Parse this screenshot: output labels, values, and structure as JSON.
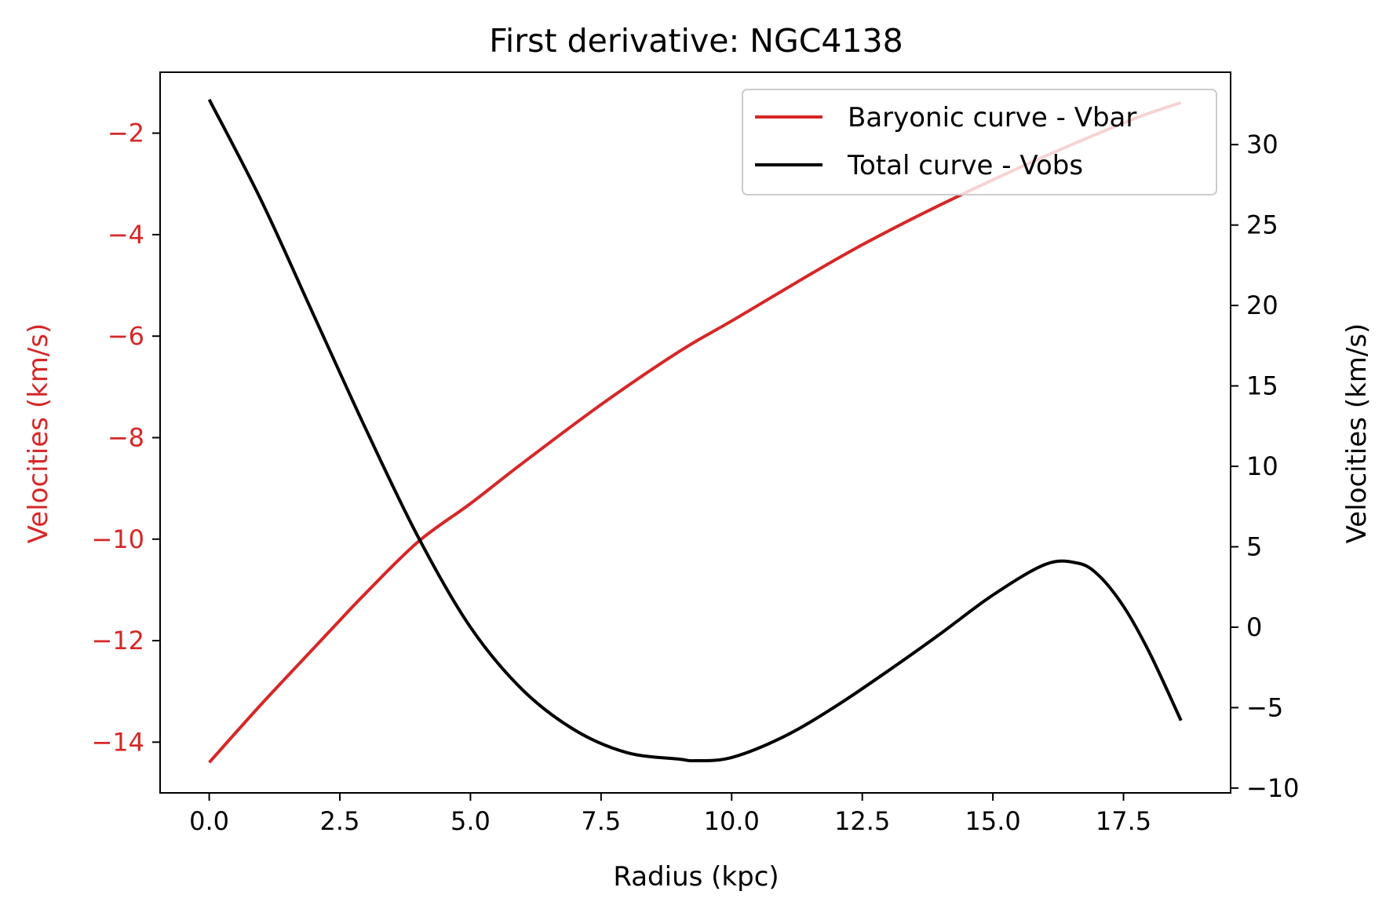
{
  "chart_data": {
    "type": "line",
    "title": "First derivative: NGC4138",
    "xlabel": "Radius (kpc)",
    "ylabel_left": "Velocities (km/s)",
    "ylabel_right": "Velocities (km/s)",
    "xlim": [
      -0.94,
      19.55
    ],
    "ylim_left": [
      -15.0,
      -0.8
    ],
    "ylim_right": [
      -10.3,
      34.5
    ],
    "x_ticks": [
      "0.0",
      "2.5",
      "5.0",
      "7.5",
      "10.0",
      "12.5",
      "15.0",
      "17.5"
    ],
    "x_tick_values": [
      0,
      2.5,
      5,
      7.5,
      10,
      12.5,
      15,
      17.5
    ],
    "y_left_ticks": [
      "−14",
      "−12",
      "−10",
      "−8",
      "−6",
      "−4",
      "−2"
    ],
    "y_left_tick_values": [
      -14,
      -12,
      -10,
      -8,
      -6,
      -4,
      -2
    ],
    "y_right_ticks": [
      "−10",
      "−5",
      "0",
      "5",
      "10",
      "15",
      "20",
      "25",
      "30"
    ],
    "y_right_tick_values": [
      -10,
      -5,
      0,
      5,
      10,
      15,
      20,
      25,
      30
    ],
    "grid": false,
    "legend_position": "top-right",
    "colors": {
      "left_axis": "#d62728",
      "vbar": "#d62728",
      "vobs": "#000000"
    },
    "series": [
      {
        "name": "Baryonic curve - Vbar",
        "axis": "left",
        "color": "#d62728",
        "x": [
          0,
          1,
          2,
          2.5,
          3,
          4,
          5,
          6,
          7.5,
          9,
          10,
          12.5,
          15,
          17.5,
          18.6
        ],
        "y": [
          -14.4,
          -13.25,
          -12.15,
          -11.6,
          -11.06,
          -10.05,
          -9.3,
          -8.5,
          -7.35,
          -6.3,
          -5.7,
          -4.2,
          -2.92,
          -1.8,
          -1.4
        ]
      },
      {
        "name": "Total curve - Vobs",
        "axis": "right",
        "color": "#000000",
        "x": [
          0,
          1,
          2,
          3,
          4,
          5,
          6,
          7,
          8,
          9,
          9.3,
          10,
          11,
          12,
          13,
          14,
          15,
          16,
          16.6,
          17,
          17.5,
          18,
          18.6
        ],
        "y": [
          32.8,
          26.5,
          19.4,
          12.3,
          5.6,
          0,
          -3.9,
          -6.4,
          -7.8,
          -8.2,
          -8.3,
          -8.1,
          -6.8,
          -4.9,
          -2.7,
          -0.4,
          2.0,
          3.9,
          4.0,
          3.3,
          1.3,
          -1.6,
          -5.8
        ]
      }
    ]
  }
}
